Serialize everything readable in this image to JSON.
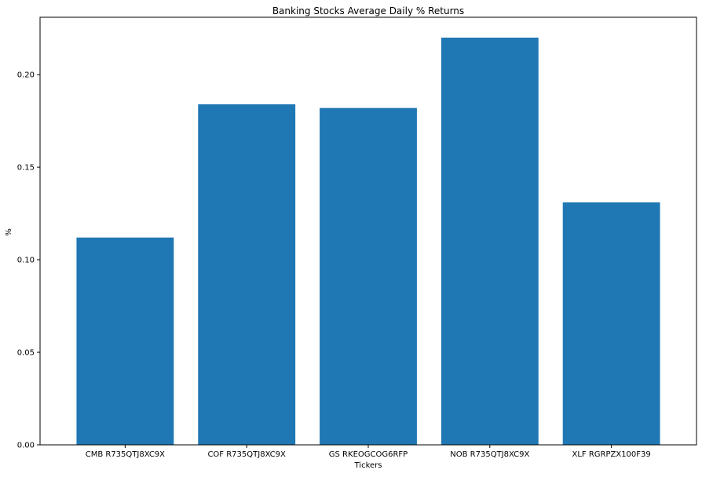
{
  "chart_data": {
    "type": "bar",
    "title": "Banking Stocks Average Daily % Returns",
    "xlabel": "Tickers",
    "ylabel": "%",
    "categories": [
      "CMB R735QTJ8XC9X",
      "COF R735QTJ8XC9X",
      "GS RKEOGCOG6RFP",
      "NOB R735QTJ8XC9X",
      "XLF RGRPZX100F39"
    ],
    "values": [
      0.112,
      0.184,
      0.182,
      0.22,
      0.131
    ],
    "ylim": [
      0,
      0.231
    ],
    "yticks": [
      "0.00",
      "0.05",
      "0.10",
      "0.15",
      "0.20"
    ],
    "grid": false,
    "bar_color": "#1f77b4"
  }
}
